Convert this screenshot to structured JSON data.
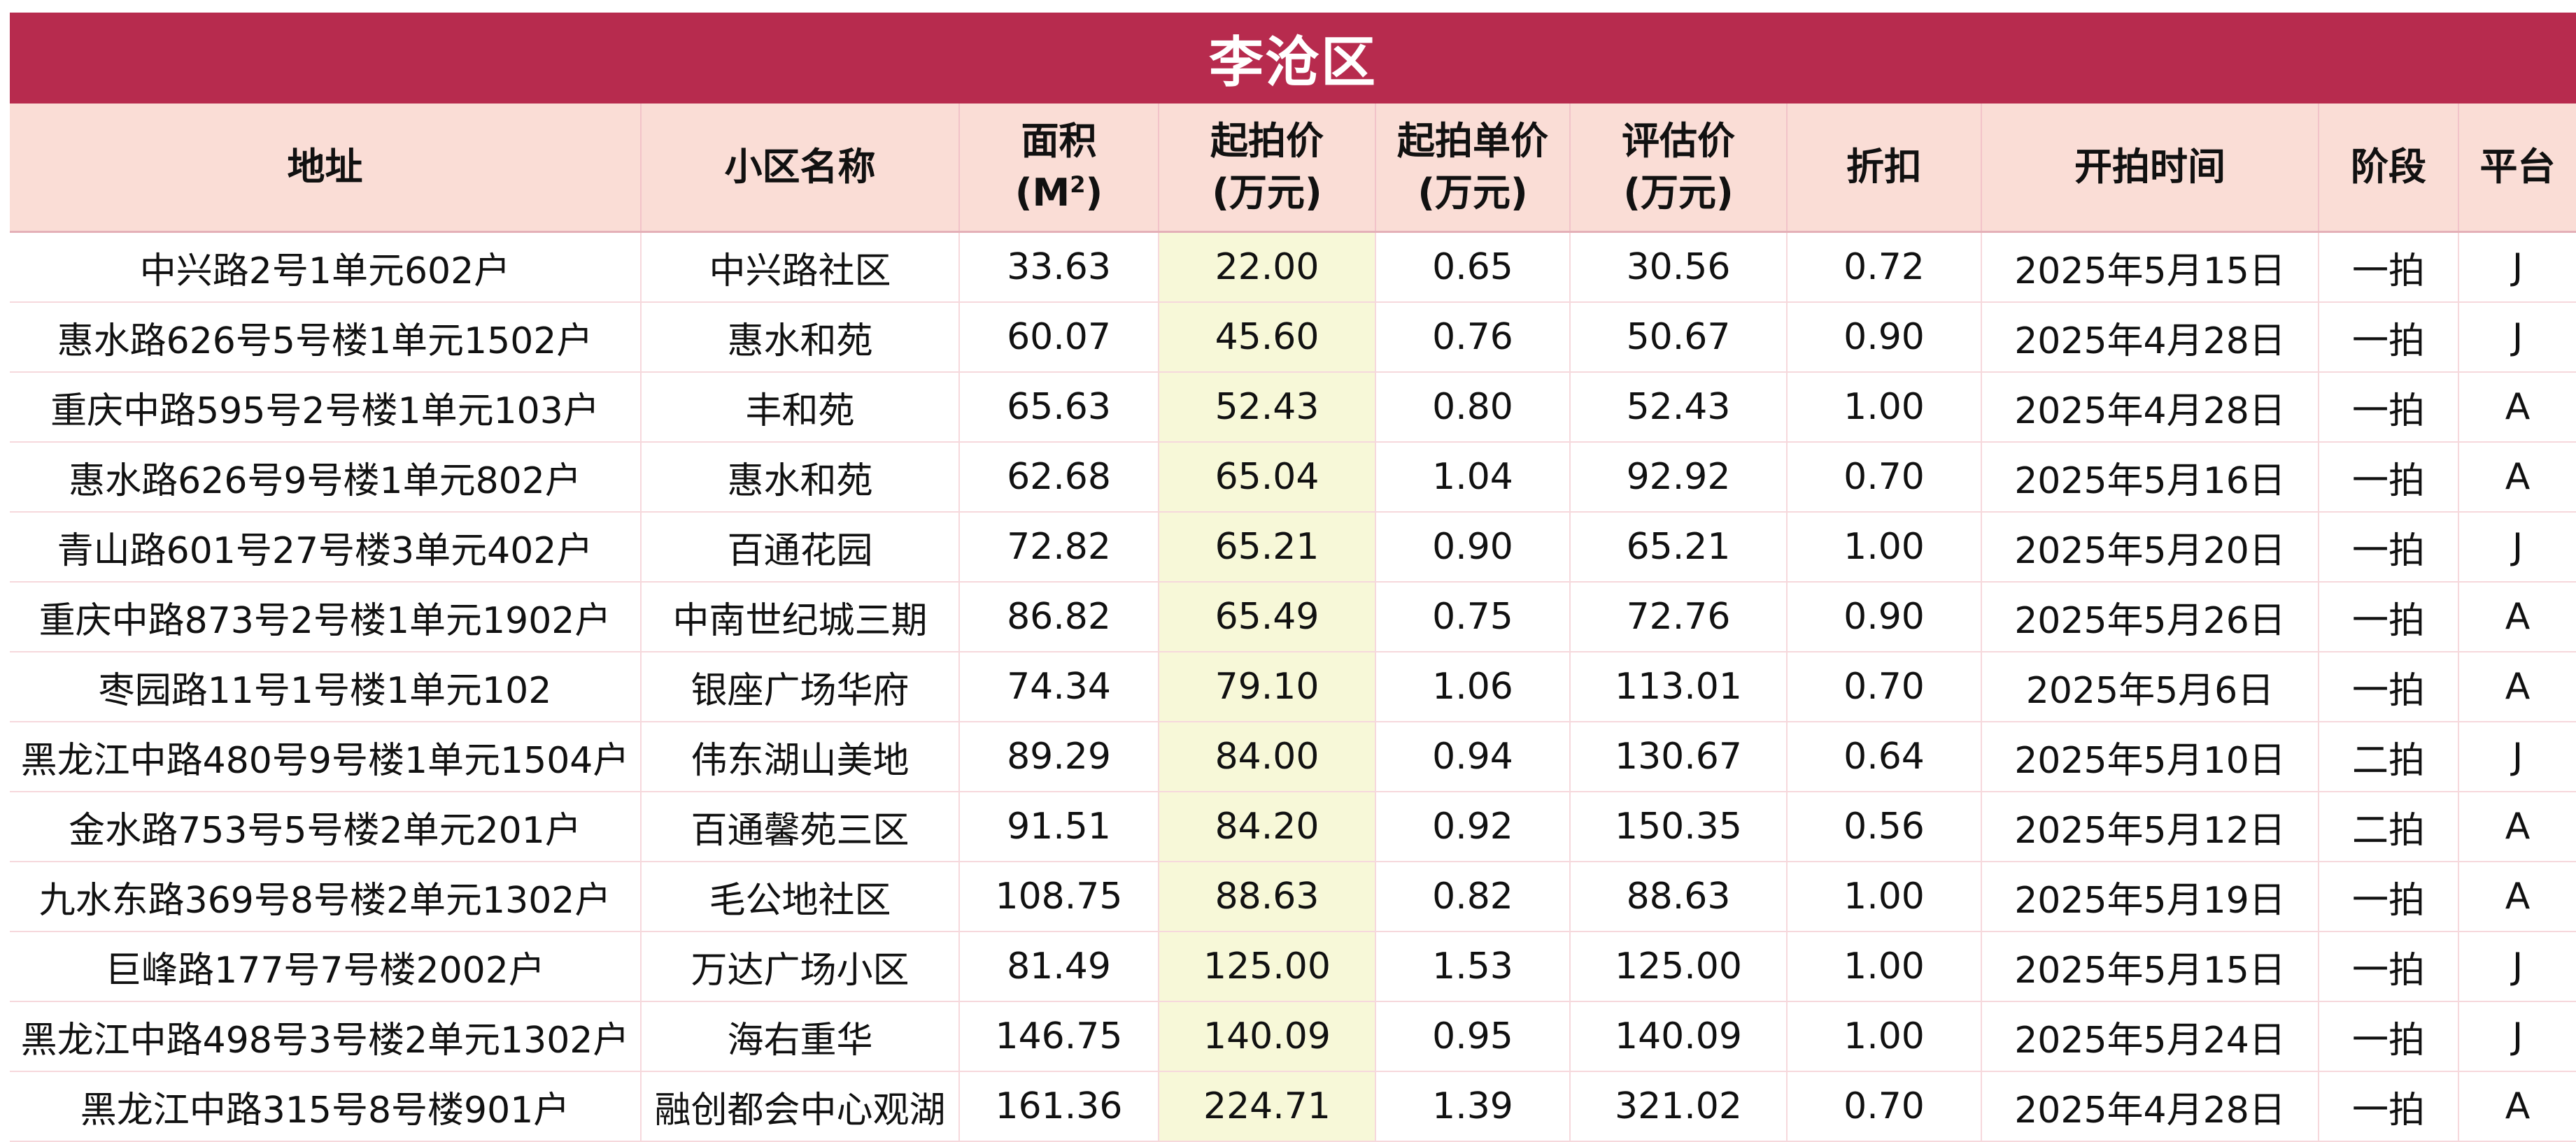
{
  "title": "李沧区",
  "headers": {
    "address": "地址",
    "community": "小区名称",
    "area_line1": "面积",
    "area_line2_open": "(M",
    "area_sup": "2",
    "area_line2_close": ")",
    "start_price_line1": "起拍价",
    "start_price_line2": "(万元)",
    "unit_price_line1": "起拍单价",
    "unit_price_line2": "(万元)",
    "eval_price_line1": "评估价",
    "eval_price_line2": "(万元)",
    "discount": "折扣",
    "auction_time": "开拍时间",
    "stage": "阶段",
    "platform": "平台"
  },
  "colors": {
    "title_bg": "#B72B4E",
    "header_bg": "#FADDD6",
    "highlight_col_bg": "#F7F8D8",
    "grid_line": "#F6D8DC"
  },
  "rows": [
    [
      "中兴路2号1单元602户",
      "中兴路社区",
      "33.63",
      "22.00",
      "0.65",
      "30.56",
      "0.72",
      "2025年5月15日",
      "一拍",
      "J"
    ],
    [
      "惠水路626号5号楼1单元1502户",
      "惠水和苑",
      "60.07",
      "45.60",
      "0.76",
      "50.67",
      "0.90",
      "2025年4月28日",
      "一拍",
      "J"
    ],
    [
      "重庆中路595号2号楼1单元103户",
      "丰和苑",
      "65.63",
      "52.43",
      "0.80",
      "52.43",
      "1.00",
      "2025年4月28日",
      "一拍",
      "A"
    ],
    [
      "惠水路626号9号楼1单元802户",
      "惠水和苑",
      "62.68",
      "65.04",
      "1.04",
      "92.92",
      "0.70",
      "2025年5月16日",
      "一拍",
      "A"
    ],
    [
      "青山路601号27号楼3单元402户",
      "百通花园",
      "72.82",
      "65.21",
      "0.90",
      "65.21",
      "1.00",
      "2025年5月20日",
      "一拍",
      "J"
    ],
    [
      "重庆中路873号2号楼1单元1902户",
      "中南世纪城三期",
      "86.82",
      "65.49",
      "0.75",
      "72.76",
      "0.90",
      "2025年5月26日",
      "一拍",
      "A"
    ],
    [
      "枣园路11号1号楼1单元102",
      "银座广场华府",
      "74.34",
      "79.10",
      "1.06",
      "113.01",
      "0.70",
      "2025年5月6日",
      "一拍",
      "A"
    ],
    [
      "黑龙江中路480号9号楼1单元1504户",
      "伟东湖山美地",
      "89.29",
      "84.00",
      "0.94",
      "130.67",
      "0.64",
      "2025年5月10日",
      "二拍",
      "J"
    ],
    [
      "金水路753号5号楼2单元201户",
      "百通馨苑三区",
      "91.51",
      "84.20",
      "0.92",
      "150.35",
      "0.56",
      "2025年5月12日",
      "二拍",
      "A"
    ],
    [
      "九水东路369号8号楼2单元1302户",
      "毛公地社区",
      "108.75",
      "88.63",
      "0.82",
      "88.63",
      "1.00",
      "2025年5月19日",
      "一拍",
      "A"
    ],
    [
      "巨峰路177号7号楼2002户",
      "万达广场小区",
      "81.49",
      "125.00",
      "1.53",
      "125.00",
      "1.00",
      "2025年5月15日",
      "一拍",
      "J"
    ],
    [
      "黑龙江中路498号3号楼2单元1302户",
      "海右重华",
      "146.75",
      "140.09",
      "0.95",
      "140.09",
      "1.00",
      "2025年5月24日",
      "一拍",
      "J"
    ],
    [
      "黑龙江中路315号8号楼901户",
      "融创都会中心观湖",
      "161.36",
      "224.71",
      "1.39",
      "321.02",
      "0.70",
      "2025年4月28日",
      "一拍",
      "A"
    ]
  ]
}
